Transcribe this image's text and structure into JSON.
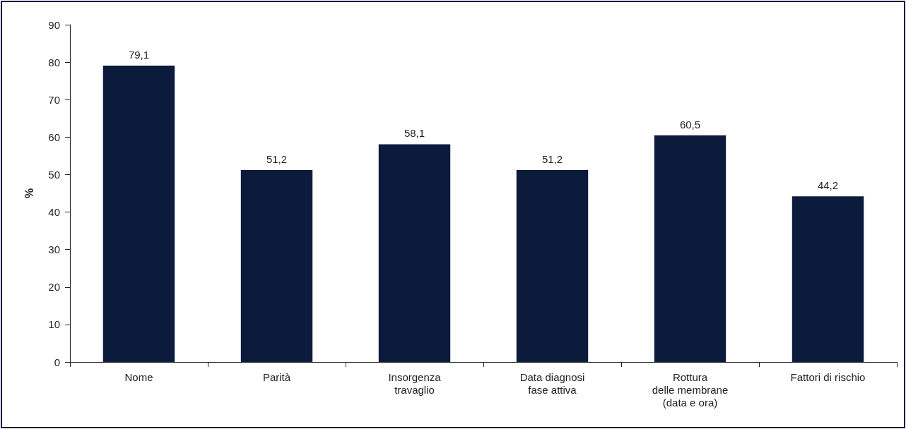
{
  "chart_data": {
    "type": "bar",
    "ylabel": "%",
    "categories": [
      "Nome",
      "Parità",
      "Insorgenza\ntravaglio",
      "Data diagnosi\nfase attiva",
      "Rottura\ndelle membrane\n(data e ora)",
      "Fattori di rischio"
    ],
    "values": [
      79.1,
      51.2,
      58.1,
      51.2,
      60.5,
      44.2
    ],
    "value_labels": [
      "79,1",
      "51,2",
      "58,1",
      "51,2",
      "60,5",
      "44,2"
    ],
    "color": "#0c1a3c",
    "ylim": [
      0,
      90
    ],
    "yticks": [
      0,
      10,
      20,
      30,
      40,
      50,
      60,
      70,
      80,
      90
    ],
    "grid": false
  }
}
